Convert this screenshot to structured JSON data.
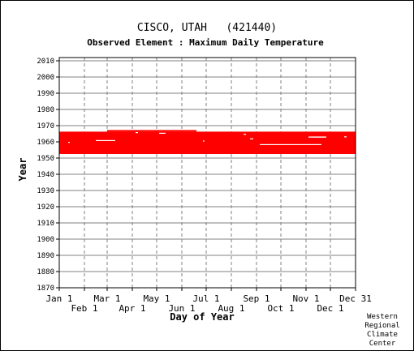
{
  "chart_data": {
    "type": "heatmap",
    "title": "CISCO, UTAH   (421440)",
    "subtitle": "Observed Element : Maximum Daily Temperature",
    "xlabel": "Day of Year",
    "ylabel": "Year",
    "x_range_days": [
      1,
      366
    ],
    "ylim": [
      1870,
      2012
    ],
    "grid": true,
    "y_ticks": [
      1870,
      1880,
      1890,
      1900,
      1910,
      1920,
      1930,
      1940,
      1950,
      1960,
      1970,
      1980,
      1990,
      2000,
      2010
    ],
    "x_ticks_upper": [
      {
        "label": "Jan 1",
        "day": 1
      },
      {
        "label": "Mar 1",
        "day": 60
      },
      {
        "label": "May 1",
        "day": 121
      },
      {
        "label": "Jul 1",
        "day": 182
      },
      {
        "label": "Sep 1",
        "day": 244
      },
      {
        "label": "Nov 1",
        "day": 305
      },
      {
        "label": "Dec 31",
        "day": 366
      }
    ],
    "x_ticks_lower": [
      {
        "label": "Feb 1",
        "day": 32
      },
      {
        "label": "Apr 1",
        "day": 91
      },
      {
        "label": "Jun 1",
        "day": 152
      },
      {
        "label": "Aug 1",
        "day": 213
      },
      {
        "label": "Oct 1",
        "day": 274
      },
      {
        "label": "Dec 1",
        "day": 335
      }
    ],
    "data_color": "#ff0000",
    "data_blocks": [
      {
        "day_start": 1,
        "day_end": 366,
        "year_start": 1952.5,
        "year_end": 1966.3
      },
      {
        "day_start": 60,
        "day_end": 170,
        "year_start": 1966.3,
        "year_end": 1967.3
      }
    ],
    "gaps": [
      {
        "day_start": 46,
        "day_end": 70,
        "year_start": 1960.5,
        "year_end": 1961.1
      },
      {
        "day_start": 248,
        "day_end": 324,
        "year_start": 1958.0,
        "year_end": 1958.6
      },
      {
        "day_start": 308,
        "day_end": 330,
        "year_start": 1962.6,
        "year_end": 1963.3
      },
      {
        "day_start": 124,
        "day_end": 132,
        "year_start": 1965.0,
        "year_end": 1965.6
      },
      {
        "day_start": 236,
        "day_end": 240,
        "year_start": 1961.6,
        "year_end": 1962.2
      },
      {
        "day_start": 228,
        "day_end": 231,
        "year_start": 1964.4,
        "year_end": 1965.0
      },
      {
        "day_start": 95,
        "day_end": 98,
        "year_start": 1965.4,
        "year_end": 1966.0
      },
      {
        "day_start": 12,
        "day_end": 14,
        "year_start": 1959.4,
        "year_end": 1960.0
      },
      {
        "day_start": 352,
        "day_end": 355,
        "year_start": 1962.8,
        "year_end": 1963.4
      },
      {
        "day_start": 178,
        "day_end": 180,
        "year_start": 1960.2,
        "year_end": 1960.8
      }
    ]
  },
  "credit": {
    "line1": "Western",
    "line2": "Regional",
    "line3": "Climate",
    "line4": "Center"
  }
}
